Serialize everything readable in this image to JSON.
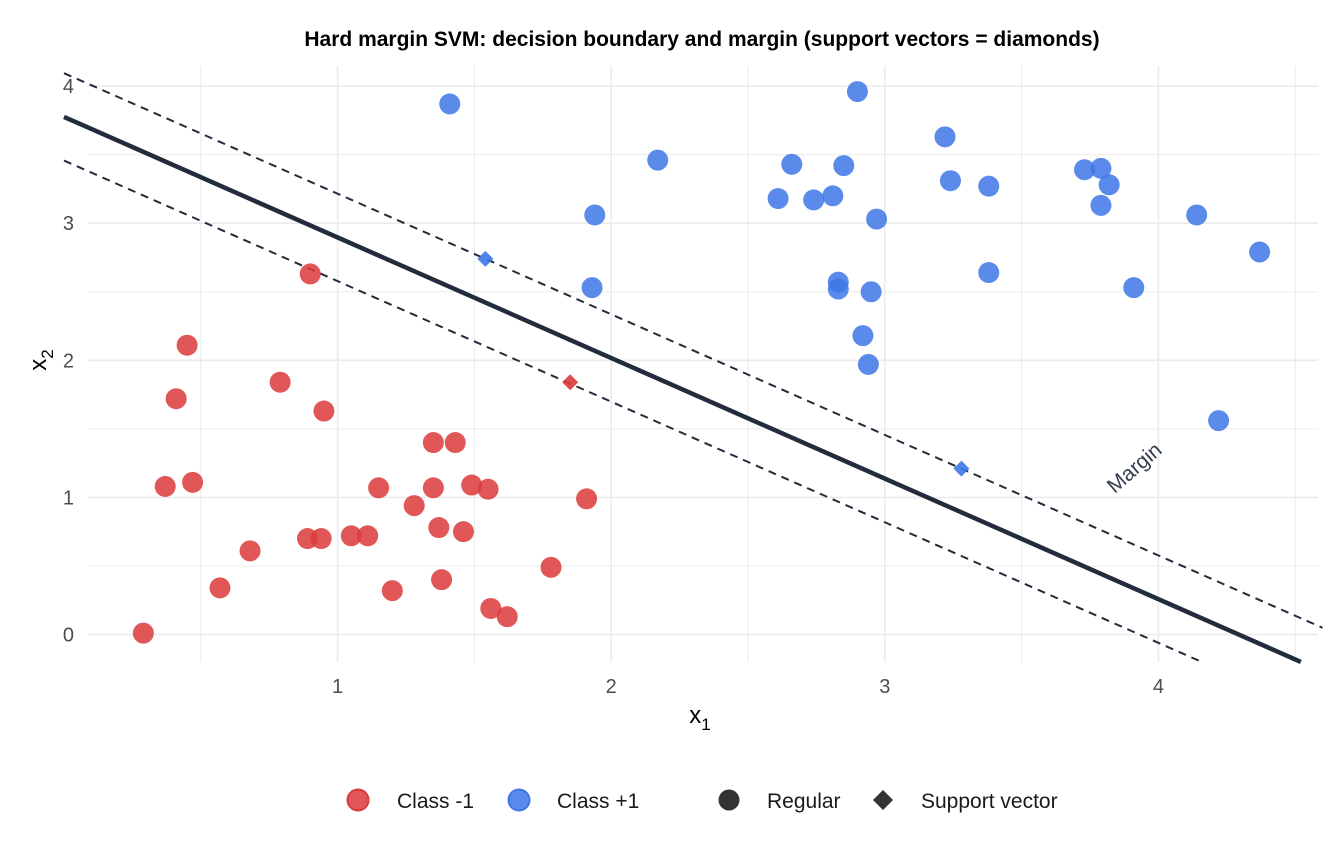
{
  "chart_data": {
    "type": "scatter",
    "title": "Hard margin SVM: decision boundary and margin (support vectors = diamonds)",
    "xlabel": "x1",
    "ylabel": "x2",
    "xlim": [
      0.0,
      4.6
    ],
    "ylim": [
      -0.2,
      4.15
    ],
    "x_ticks": [
      1,
      2,
      3,
      4
    ],
    "y_ticks": [
      0,
      1,
      2,
      3,
      4
    ],
    "grid": true,
    "legend_position": "bottom",
    "colors": {
      "class_neg": "#dc3a3a",
      "class_pos": "#3d77e6",
      "boundary": "#232c3b",
      "grid": "#ebebeb"
    },
    "series": [
      {
        "name": "Class -1",
        "points": [
          [
            0.29,
            0.01
          ],
          [
            0.37,
            1.08
          ],
          [
            0.41,
            1.72
          ],
          [
            0.45,
            2.11
          ],
          [
            0.47,
            1.11
          ],
          [
            0.57,
            0.34
          ],
          [
            0.68,
            0.61
          ],
          [
            0.79,
            1.84
          ],
          [
            0.89,
            0.7
          ],
          [
            0.9,
            2.63
          ],
          [
            0.94,
            0.7
          ],
          [
            0.95,
            1.63
          ],
          [
            1.05,
            0.72
          ],
          [
            1.11,
            0.72
          ],
          [
            1.15,
            1.07
          ],
          [
            1.2,
            0.32
          ],
          [
            1.28,
            0.94
          ],
          [
            1.35,
            1.07
          ],
          [
            1.35,
            1.4
          ],
          [
            1.37,
            0.78
          ],
          [
            1.38,
            0.4
          ],
          [
            1.43,
            1.4
          ],
          [
            1.46,
            0.75
          ],
          [
            1.49,
            1.09
          ],
          [
            1.55,
            1.06
          ],
          [
            1.56,
            0.19
          ],
          [
            1.62,
            0.13
          ],
          [
            1.78,
            0.49
          ],
          [
            1.91,
            0.99
          ]
        ]
      },
      {
        "name": "Class +1",
        "points": [
          [
            1.41,
            3.87
          ],
          [
            1.93,
            2.53
          ],
          [
            1.94,
            3.06
          ],
          [
            2.17,
            3.46
          ],
          [
            2.61,
            3.18
          ],
          [
            2.66,
            3.43
          ],
          [
            2.74,
            3.17
          ],
          [
            2.81,
            3.2
          ],
          [
            2.83,
            2.57
          ],
          [
            2.83,
            2.52
          ],
          [
            2.85,
            3.42
          ],
          [
            2.9,
            3.96
          ],
          [
            2.92,
            2.18
          ],
          [
            2.94,
            1.97
          ],
          [
            2.95,
            2.5
          ],
          [
            2.97,
            3.03
          ],
          [
            3.22,
            3.63
          ],
          [
            3.24,
            3.31
          ],
          [
            3.38,
            3.27
          ],
          [
            3.38,
            2.64
          ],
          [
            3.73,
            3.39
          ],
          [
            3.79,
            3.4
          ],
          [
            3.79,
            3.13
          ],
          [
            3.82,
            3.28
          ],
          [
            3.91,
            2.53
          ],
          [
            4.14,
            3.06
          ],
          [
            4.22,
            1.56
          ],
          [
            4.37,
            2.79
          ]
        ]
      }
    ],
    "support_vectors": [
      {
        "class": "Class +1",
        "x": 1.54,
        "y": 2.74
      },
      {
        "class": "Class -1",
        "x": 1.85,
        "y": 1.84
      },
      {
        "class": "Class +1",
        "x": 3.28,
        "y": 1.21
      }
    ],
    "decision_boundary": {
      "slope": -0.8794,
      "intercept": 3.7755
    },
    "margin_lines": [
      {
        "slope": -0.8794,
        "intercept": 4.0943
      },
      {
        "slope": -0.8794,
        "intercept": 3.4569
      }
    ],
    "annotation": "Margin",
    "legend": {
      "class_items": [
        "Class -1",
        "Class +1"
      ],
      "shape_items": [
        "Regular",
        "Support vector"
      ]
    }
  }
}
